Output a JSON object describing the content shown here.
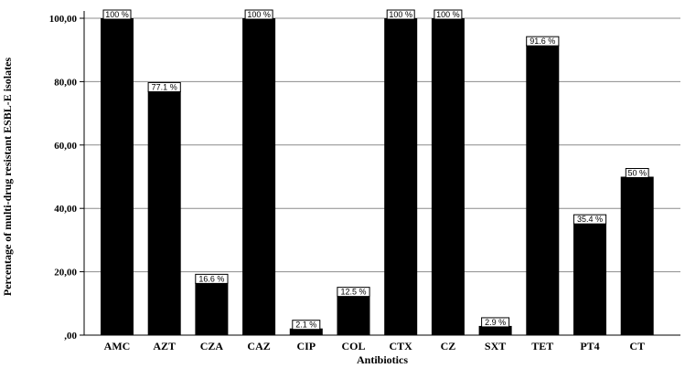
{
  "chart_data": {
    "type": "bar",
    "categories": [
      "AMC",
      "AZT",
      "CZA",
      "CAZ",
      "CIP",
      "COL",
      "CTX",
      "CZ",
      "SXT",
      "TET",
      "PT4",
      "CT"
    ],
    "values": [
      100,
      77.1,
      16.6,
      100,
      2.1,
      12.5,
      100,
      100,
      2.9,
      91.6,
      35.4,
      50
    ],
    "data_labels": [
      "100 %",
      "77.1 %",
      "16.6 %",
      "100 %",
      "2.1 %",
      "12.5 %",
      "100 %",
      "100 %",
      "2.9 %",
      "91.6 %",
      "35.4 %",
      "50 %"
    ],
    "xlabel": "Antibiotics",
    "ylabel": "Percentage of multi-drug resistant ESBL-E isolates",
    "ylim": [
      0,
      100
    ],
    "yticks": [
      0,
      20,
      40,
      60,
      80,
      100
    ],
    "ytick_labels": [
      ",00",
      "20,00",
      "40,00",
      "60,00",
      "80,00",
      "100,00"
    ],
    "grid": true,
    "bar_color": "#000000",
    "grid_color": "#8c8c8c",
    "legend": "none"
  }
}
